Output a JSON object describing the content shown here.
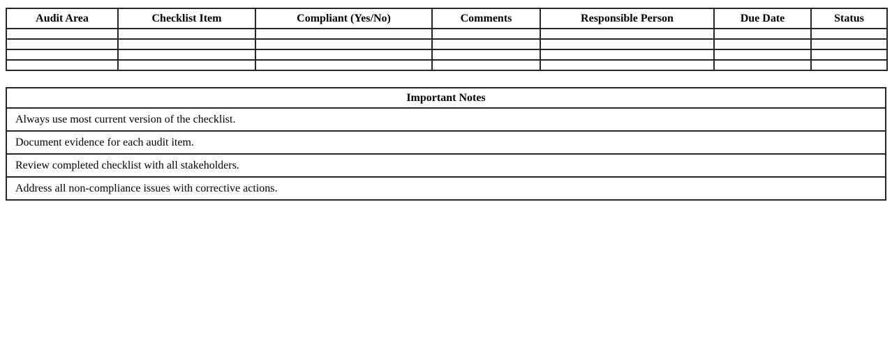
{
  "checklist": {
    "headers": [
      "Audit Area",
      "Checklist Item",
      "Compliant (Yes/No)",
      "Comments",
      "Responsible Person",
      "Due Date",
      "Status"
    ],
    "empty_row_count": 4,
    "cell_values": []
  },
  "notes": {
    "title": "Important Notes",
    "items": [
      "Always use most current version of the checklist.",
      "Document evidence for each audit item.",
      "Review completed checklist with all stakeholders.",
      "Address all non-compliance issues with corrective actions."
    ]
  },
  "colors": {
    "border": "#262626",
    "text": "#000000",
    "background": "#ffffff"
  }
}
